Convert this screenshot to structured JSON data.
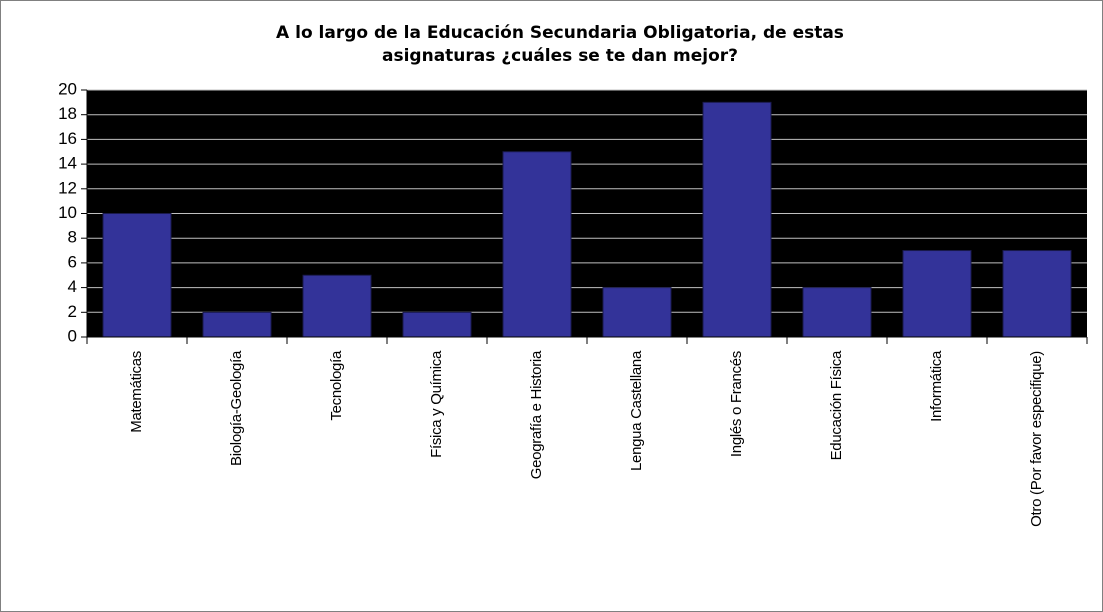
{
  "chart_data": {
    "type": "bar",
    "title": [
      "A lo largo de la Educación Secundaria Obligatoria, de estas",
      "asignaturas ¿cuáles se te dan mejor?"
    ],
    "categories": [
      "Matemáticas",
      "Biología-Geología",
      "Tecnología",
      "Física y Química",
      "Geografía e Historia",
      "Lengua Castellana",
      "Inglés o Francés",
      "Educación Física",
      "Informática",
      "Otro (Por favor especifique)"
    ],
    "values": [
      10,
      2,
      5,
      2,
      15,
      4,
      19,
      4,
      7,
      7
    ],
    "color": "#333399",
    "plot_background": "#000000",
    "ylim": [
      0,
      20
    ],
    "yticks": [
      0,
      2,
      4,
      6,
      8,
      10,
      12,
      14,
      16,
      18,
      20
    ],
    "grid": true
  }
}
